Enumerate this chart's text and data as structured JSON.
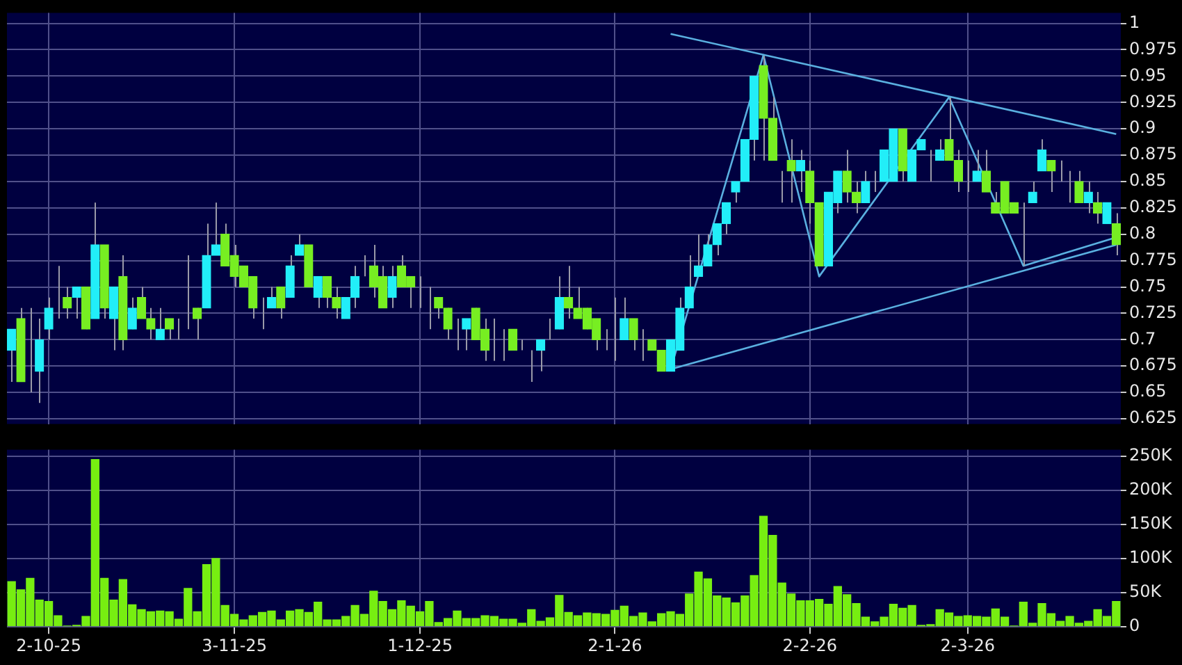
{
  "chart_data": [
    {
      "type": "candlestick",
      "categories": [
        null,
        null,
        null,
        null,
        null,
        null,
        null,
        null,
        null,
        null,
        null,
        null,
        null,
        null,
        null,
        null,
        null,
        null,
        null,
        null,
        null,
        null,
        null,
        null,
        null,
        null,
        null,
        null,
        null,
        null,
        null,
        null,
        null,
        null,
        null,
        null,
        null,
        null,
        null,
        null,
        null,
        null,
        null,
        null,
        null,
        null,
        null,
        null,
        null,
        null,
        null,
        null,
        null,
        null,
        null,
        null,
        null,
        null,
        null,
        null,
        null,
        null,
        null,
        null,
        null,
        null,
        null,
        null,
        null,
        null,
        null,
        null,
        null,
        null,
        null,
        null,
        null,
        null,
        null,
        null,
        null,
        null,
        null,
        null,
        null,
        null,
        null,
        null,
        null,
        null,
        null,
        null,
        null,
        null,
        null,
        null,
        null,
        null,
        null,
        null,
        null,
        null,
        null,
        null,
        null,
        null,
        null,
        null,
        null,
        null,
        null,
        null,
        null,
        null,
        null,
        null,
        null,
        null,
        null,
        null
      ],
      "ohlc": [
        [
          0.69,
          0.71,
          0.66,
          0.71
        ],
        [
          0.72,
          0.73,
          0.66,
          0.66
        ],
        [
          0.66,
          0.73,
          0.65,
          0.66
        ],
        [
          0.67,
          0.72,
          0.64,
          0.7
        ],
        [
          0.71,
          0.74,
          0.7,
          0.73
        ],
        [
          0.74,
          0.77,
          0.72,
          0.74
        ],
        [
          0.74,
          0.75,
          0.72,
          0.73
        ],
        [
          0.74,
          0.75,
          0.72,
          0.75
        ],
        [
          0.75,
          0.75,
          0.71,
          0.71
        ],
        [
          0.72,
          0.83,
          0.72,
          0.79
        ],
        [
          0.79,
          0.79,
          0.72,
          0.73
        ],
        [
          0.72,
          0.75,
          0.69,
          0.75
        ],
        [
          0.76,
          0.78,
          0.69,
          0.7
        ],
        [
          0.71,
          0.74,
          0.71,
          0.73
        ],
        [
          0.74,
          0.75,
          0.72,
          0.72
        ],
        [
          0.72,
          0.73,
          0.7,
          0.71
        ],
        [
          0.7,
          0.73,
          0.7,
          0.71
        ],
        [
          0.72,
          0.72,
          0.7,
          0.71
        ],
        [
          0.72,
          0.72,
          0.7,
          0.72
        ],
        [
          0.72,
          0.78,
          0.71,
          0.72
        ],
        [
          0.73,
          0.73,
          0.7,
          0.72
        ],
        [
          0.73,
          0.81,
          0.73,
          0.78
        ],
        [
          0.78,
          0.83,
          0.78,
          0.79
        ],
        [
          0.8,
          0.81,
          0.77,
          0.77
        ],
        [
          0.78,
          0.79,
          0.75,
          0.76
        ],
        [
          0.77,
          0.77,
          0.75,
          0.75
        ],
        [
          0.76,
          0.76,
          0.72,
          0.73
        ],
        [
          0.72,
          0.74,
          0.71,
          0.72
        ],
        [
          0.73,
          0.75,
          0.73,
          0.74
        ],
        [
          0.75,
          0.75,
          0.72,
          0.73
        ],
        [
          0.74,
          0.78,
          0.74,
          0.77
        ],
        [
          0.78,
          0.8,
          0.78,
          0.79
        ],
        [
          0.79,
          0.79,
          0.75,
          0.75
        ],
        [
          0.74,
          0.76,
          0.73,
          0.76
        ],
        [
          0.76,
          0.76,
          0.73,
          0.74
        ],
        [
          0.74,
          0.75,
          0.72,
          0.73
        ],
        [
          0.72,
          0.74,
          0.72,
          0.74
        ],
        [
          0.74,
          0.77,
          0.73,
          0.76
        ],
        [
          0.77,
          0.78,
          0.76,
          0.77
        ],
        [
          0.77,
          0.79,
          0.74,
          0.75
        ],
        [
          0.76,
          0.77,
          0.73,
          0.73
        ],
        [
          0.74,
          0.77,
          0.73,
          0.76
        ],
        [
          0.77,
          0.78,
          0.75,
          0.75
        ],
        [
          0.76,
          0.76,
          0.73,
          0.75
        ],
        [
          0.74,
          0.76,
          0.73,
          0.74
        ],
        [
          0.74,
          0.75,
          0.71,
          0.74
        ],
        [
          0.74,
          0.74,
          0.72,
          0.73
        ],
        [
          0.73,
          0.73,
          0.7,
          0.71
        ],
        [
          0.71,
          0.72,
          0.69,
          0.71
        ],
        [
          0.71,
          0.72,
          0.69,
          0.72
        ],
        [
          0.73,
          0.73,
          0.7,
          0.7
        ],
        [
          0.71,
          0.72,
          0.68,
          0.69
        ],
        [
          0.7,
          0.72,
          0.68,
          0.7
        ],
        [
          0.7,
          0.71,
          0.68,
          0.7
        ],
        [
          0.71,
          0.71,
          0.69,
          0.69
        ],
        [
          0.69,
          0.7,
          0.69,
          0.69
        ],
        [
          0.69,
          0.69,
          0.66,
          0.69
        ],
        [
          0.69,
          0.7,
          0.67,
          0.7
        ],
        [
          0.7,
          0.72,
          0.7,
          0.7
        ],
        [
          0.71,
          0.76,
          0.71,
          0.74
        ],
        [
          0.74,
          0.77,
          0.72,
          0.73
        ],
        [
          0.73,
          0.75,
          0.72,
          0.72
        ],
        [
          0.73,
          0.73,
          0.71,
          0.71
        ],
        [
          0.72,
          0.72,
          0.69,
          0.7
        ],
        [
          0.7,
          0.71,
          0.69,
          0.7
        ],
        [
          0.7,
          0.74,
          0.68,
          0.7
        ],
        [
          0.7,
          0.74,
          0.7,
          0.72
        ],
        [
          0.72,
          0.72,
          0.69,
          0.7
        ],
        [
          0.7,
          0.71,
          0.68,
          0.7
        ],
        [
          0.7,
          0.7,
          0.69,
          0.69
        ],
        [
          0.69,
          0.69,
          0.67,
          0.67
        ],
        [
          0.67,
          0.7,
          0.67,
          0.7
        ],
        [
          0.69,
          0.74,
          0.69,
          0.73
        ],
        [
          0.73,
          0.78,
          0.73,
          0.75
        ],
        [
          0.76,
          0.8,
          0.76,
          0.77
        ],
        [
          0.77,
          0.8,
          0.77,
          0.79
        ],
        [
          0.79,
          0.81,
          0.78,
          0.81
        ],
        [
          0.81,
          0.83,
          0.8,
          0.83
        ],
        [
          0.84,
          0.85,
          0.83,
          0.85
        ],
        [
          0.85,
          0.89,
          0.85,
          0.89
        ],
        [
          0.89,
          0.95,
          0.87,
          0.95
        ],
        [
          0.96,
          0.97,
          0.87,
          0.91
        ],
        [
          0.91,
          0.93,
          0.87,
          0.87
        ],
        [
          0.86,
          0.86,
          0.83,
          0.86
        ],
        [
          0.87,
          0.89,
          0.83,
          0.86
        ],
        [
          0.86,
          0.88,
          0.84,
          0.87
        ],
        [
          0.86,
          0.87,
          0.81,
          0.83
        ],
        [
          0.83,
          0.83,
          0.77,
          0.77
        ],
        [
          0.77,
          0.84,
          0.77,
          0.84
        ],
        [
          0.83,
          0.86,
          0.82,
          0.86
        ],
        [
          0.86,
          0.88,
          0.83,
          0.84
        ],
        [
          0.84,
          0.85,
          0.82,
          0.83
        ],
        [
          0.83,
          0.86,
          0.83,
          0.85
        ],
        [
          0.84,
          0.86,
          0.84,
          0.84
        ],
        [
          0.85,
          0.88,
          0.85,
          0.88
        ],
        [
          0.85,
          0.9,
          0.85,
          0.9
        ],
        [
          0.9,
          0.9,
          0.85,
          0.86
        ],
        [
          0.85,
          0.88,
          0.85,
          0.88
        ],
        [
          0.88,
          0.89,
          0.88,
          0.89
        ],
        [
          0.88,
          0.88,
          0.85,
          0.88
        ],
        [
          0.87,
          0.89,
          0.87,
          0.88
        ],
        [
          0.89,
          0.93,
          0.87,
          0.87
        ],
        [
          0.87,
          0.88,
          0.84,
          0.85
        ],
        [
          0.87,
          0.87,
          0.84,
          0.87
        ],
        [
          0.85,
          0.88,
          0.85,
          0.86
        ],
        [
          0.86,
          0.88,
          0.84,
          0.84
        ],
        [
          0.83,
          0.84,
          0.82,
          0.82
        ],
        [
          0.85,
          0.85,
          0.82,
          0.82
        ],
        [
          0.83,
          0.83,
          0.82,
          0.82
        ],
        [
          0.82,
          0.83,
          0.77,
          0.82
        ],
        [
          0.83,
          0.85,
          0.83,
          0.84
        ],
        [
          0.86,
          0.89,
          0.86,
          0.88
        ],
        [
          0.87,
          0.87,
          0.84,
          0.86
        ],
        [
          0.86,
          0.87,
          0.85,
          0.86
        ],
        [
          0.86,
          0.86,
          0.83,
          0.86
        ],
        [
          0.85,
          0.86,
          0.83,
          0.83
        ],
        [
          0.83,
          0.85,
          0.82,
          0.84
        ],
        [
          0.83,
          0.84,
          0.81,
          0.82
        ],
        [
          0.81,
          0.83,
          0.81,
          0.83
        ],
        [
          0.81,
          0.82,
          0.78,
          0.79
        ]
      ],
      "colors": [
        "#22eef8",
        "#77ee22",
        "#a0a0b0",
        "#22eef8",
        "#22eef8",
        "#a0a0b0",
        "#77ee22",
        "#22eef8",
        "#77ee22",
        "#22eef8",
        "#77ee22",
        "#22eef8",
        "#77ee22",
        "#22eef8",
        "#77ee22",
        "#77ee22",
        "#22eef8",
        "#77ee22",
        "#a0a0b0",
        "#a0a0b0",
        "#77ee22",
        "#22eef8",
        "#22eef8",
        "#77ee22",
        "#77ee22",
        "#77ee22",
        "#77ee22",
        "#a0a0b0",
        "#22eef8",
        "#77ee22",
        "#22eef8",
        "#22eef8",
        "#77ee22",
        "#22eef8",
        "#77ee22",
        "#77ee22",
        "#22eef8",
        "#22eef8",
        "#a0a0b0",
        "#77ee22",
        "#77ee22",
        "#22eef8",
        "#77ee22",
        "#77ee22",
        "#a0a0b0",
        "#a0a0b0",
        "#77ee22",
        "#77ee22",
        "#a0a0b0",
        "#22eef8",
        "#77ee22",
        "#77ee22",
        "#a0a0b0",
        "#a0a0b0",
        "#77ee22",
        "#a0a0b0",
        "#a0a0b0",
        "#22eef8",
        "#a0a0b0",
        "#22eef8",
        "#77ee22",
        "#77ee22",
        "#77ee22",
        "#77ee22",
        "#a0a0b0",
        "#a0a0b0",
        "#22eef8",
        "#77ee22",
        "#a0a0b0",
        "#77ee22",
        "#77ee22",
        "#22eef8",
        "#22eef8",
        "#22eef8",
        "#22eef8",
        "#22eef8",
        "#22eef8",
        "#22eef8",
        "#22eef8",
        "#22eef8",
        "#22eef8",
        "#77ee22",
        "#77ee22",
        "#a0a0b0",
        "#77ee22",
        "#22eef8",
        "#77ee22",
        "#77ee22",
        "#22eef8",
        "#22eef8",
        "#77ee22",
        "#77ee22",
        "#22eef8",
        "#a0a0b0",
        "#22eef8",
        "#22eef8",
        "#77ee22",
        "#22eef8",
        "#22eef8",
        "#a0a0b0",
        "#22eef8",
        "#77ee22",
        "#77ee22",
        "#a0a0b0",
        "#22eef8",
        "#77ee22",
        "#77ee22",
        "#77ee22",
        "#77ee22",
        "#a0a0b0",
        "#22eef8",
        "#22eef8",
        "#77ee22",
        "#a0a0b0",
        "#a0a0b0",
        "#77ee22",
        "#22eef8",
        "#77ee22",
        "#22eef8",
        "#77ee22"
      ],
      "series": [
        {
          "type": "line",
          "color": "#5ab0e0",
          "values": [
            null,
            null,
            null,
            null,
            null,
            null,
            null,
            null,
            null,
            null,
            null,
            null,
            null,
            null,
            null,
            null,
            null,
            null,
            null,
            null,
            null,
            null,
            null,
            null,
            null,
            null,
            null,
            null,
            null,
            null,
            null,
            null,
            null,
            null,
            null,
            null,
            null,
            null,
            null,
            null,
            null,
            null,
            null,
            null,
            null,
            null,
            null,
            null,
            null,
            null,
            null,
            null,
            null,
            null,
            null,
            null,
            null,
            null,
            null,
            null,
            null,
            null,
            null,
            null,
            null,
            null,
            null,
            null,
            null,
            null,
            null,
            0.99,
            null,
            null,
            null,
            null,
            null,
            null,
            null,
            null,
            null,
            null,
            null,
            null,
            null,
            null,
            null,
            null,
            null,
            null,
            null,
            null,
            null,
            null,
            null,
            null,
            null,
            null,
            null,
            null,
            null,
            null,
            null,
            null,
            null,
            null,
            null,
            null,
            null,
            null,
            null,
            null,
            null,
            null,
            null,
            null,
            null,
            null,
            null,
            0.895
          ]
        },
        {
          "type": "line",
          "color": "#5ab0e0",
          "values": [
            null,
            null,
            null,
            null,
            null,
            null,
            null,
            null,
            null,
            null,
            null,
            null,
            null,
            null,
            null,
            null,
            null,
            null,
            null,
            null,
            null,
            null,
            null,
            null,
            null,
            null,
            null,
            null,
            null,
            null,
            null,
            null,
            null,
            null,
            null,
            null,
            null,
            null,
            null,
            null,
            null,
            null,
            null,
            null,
            null,
            null,
            null,
            null,
            null,
            null,
            null,
            null,
            null,
            null,
            null,
            null,
            null,
            null,
            null,
            null,
            null,
            null,
            null,
            null,
            null,
            null,
            null,
            null,
            null,
            null,
            null,
            0.672,
            null,
            null,
            null,
            null,
            null,
            null,
            null,
            null,
            null,
            null,
            null,
            null,
            null,
            null,
            null,
            null,
            null,
            null,
            null,
            null,
            null,
            null,
            null,
            null,
            null,
            null,
            null,
            null,
            null,
            null,
            null,
            null,
            null,
            null,
            null,
            null,
            null,
            null,
            null,
            null,
            null,
            null,
            null,
            null,
            null,
            null,
            null,
            0.79
          ]
        },
        {
          "type": "line",
          "color": "#5ab0e0",
          "values": [
            null,
            null,
            null,
            null,
            null,
            null,
            null,
            null,
            null,
            null,
            null,
            null,
            null,
            null,
            null,
            null,
            null,
            null,
            null,
            null,
            null,
            null,
            null,
            null,
            null,
            null,
            null,
            null,
            null,
            null,
            null,
            null,
            null,
            null,
            null,
            null,
            null,
            null,
            null,
            null,
            null,
            null,
            null,
            null,
            null,
            null,
            null,
            null,
            null,
            null,
            null,
            null,
            null,
            null,
            null,
            null,
            null,
            null,
            null,
            null,
            null,
            null,
            null,
            null,
            null,
            null,
            null,
            null,
            null,
            null,
            null,
            0.672,
            null,
            null,
            null,
            null,
            null,
            null,
            null,
            null,
            null,
            0.97,
            null,
            null,
            null,
            null,
            null,
            0.76,
            null,
            null,
            null,
            null,
            null,
            null,
            null,
            null,
            null,
            null,
            null,
            null,
            null,
            0.93,
            null,
            null,
            null,
            null,
            null,
            null,
            null,
            0.77,
            null,
            null,
            null,
            null,
            null,
            null,
            null,
            null,
            null,
            0.797
          ]
        }
      ],
      "ylim": [
        0.62,
        1.01
      ],
      "yticks": [
        0.625,
        0.65,
        0.675,
        0.7,
        0.725,
        0.75,
        0.775,
        0.8,
        0.825,
        0.85,
        0.875,
        0.9,
        0.925,
        0.95,
        0.975,
        1
      ],
      "grid": true,
      "tick_labels": "y"
    },
    {
      "type": "bar",
      "categories": [
        null,
        null,
        null,
        null,
        "2-10-25",
        null,
        null,
        null,
        null,
        null,
        null,
        null,
        null,
        null,
        null,
        null,
        null,
        null,
        null,
        null,
        null,
        null,
        null,
        null,
        "3-11-25",
        null,
        null,
        null,
        null,
        null,
        null,
        null,
        null,
        null,
        null,
        null,
        null,
        null,
        null,
        null,
        null,
        null,
        null,
        null,
        "1-12-25",
        null,
        null,
        null,
        null,
        null,
        null,
        null,
        null,
        null,
        null,
        null,
        null,
        null,
        null,
        null,
        null,
        null,
        null,
        null,
        null,
        "2-1-26",
        null,
        null,
        null,
        null,
        null,
        null,
        null,
        null,
        null,
        null,
        null,
        null,
        null,
        null,
        null,
        null,
        null,
        null,
        null,
        null,
        "2-2-26",
        null,
        null,
        null,
        null,
        null,
        null,
        null,
        null,
        null,
        null,
        null,
        null,
        null,
        null,
        null,
        null,
        "2-3-26",
        null,
        null,
        null,
        null,
        null,
        null,
        null,
        null,
        null,
        null,
        null,
        null,
        null,
        null,
        null,
        null
      ],
      "values": [
        67000,
        55000,
        72000,
        40000,
        38000,
        17000,
        2000,
        3000,
        16000,
        246000,
        72000,
        40000,
        70000,
        33000,
        26000,
        23000,
        24000,
        23000,
        12000,
        57000,
        23000,
        92000,
        101000,
        32000,
        19000,
        11000,
        17000,
        22000,
        24000,
        11000,
        24000,
        26000,
        22000,
        37000,
        11000,
        11000,
        16000,
        32000,
        19000,
        53000,
        38000,
        26000,
        39000,
        31000,
        23000,
        38000,
        7000,
        13000,
        24000,
        13000,
        13000,
        17000,
        16000,
        12000,
        12000,
        6000,
        26000,
        9000,
        14000,
        47000,
        22000,
        17000,
        21000,
        20000,
        19000,
        25000,
        31000,
        16000,
        21000,
        8000,
        20000,
        23000,
        19000,
        49000,
        81000,
        71000,
        46000,
        43000,
        36000,
        46000,
        76000,
        163000,
        135000,
        65000,
        49000,
        39000,
        39000,
        41000,
        34000,
        60000,
        48000,
        35000,
        15000,
        8000,
        15000,
        34000,
        28000,
        32000,
        3000,
        4000,
        26000,
        21000,
        16000,
        17000,
        16000,
        15000,
        27000,
        15000,
        2000,
        37000,
        6000,
        35000,
        20000,
        9000,
        16000,
        6000,
        9000,
        26000,
        16000,
        38000
      ],
      "color": "#77ee11",
      "ylim": [
        0,
        260000
      ],
      "yticks": [
        0,
        {
          "value": 50000,
          "label": "50K"
        },
        {
          "value": 100000,
          "label": "100K"
        },
        {
          "value": 150000,
          "label": "150K"
        },
        {
          "value": 200000,
          "label": "200K"
        },
        {
          "value": 250000,
          "label": "250K"
        }
      ],
      "grid": true
    }
  ]
}
